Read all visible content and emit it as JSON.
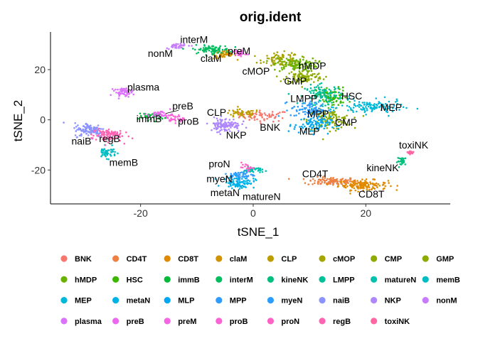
{
  "chart_data": {
    "type": "scatter",
    "title": "orig.ident",
    "xlabel": "tSNE_1",
    "ylabel": "tSNE_2",
    "xlim": [
      -36,
      35
    ],
    "ylim": [
      -33.5,
      35
    ],
    "xticks": [
      -20,
      0,
      20
    ],
    "yticks": [
      -20,
      0,
      20
    ],
    "grid": false,
    "legend_position": "bottom",
    "legend_columns": 8,
    "clusters": [
      {
        "name": "BNK",
        "color": "#F8766D",
        "center": [
          2.0,
          1.5
        ],
        "spread": [
          4.0,
          2.0
        ],
        "n": 60,
        "label": [
          3.0,
          -3.0
        ]
      },
      {
        "name": "CD4T",
        "color": "#EE8044",
        "center": [
          14.0,
          -24.5
        ],
        "spread": [
          4.0,
          1.5
        ],
        "n": 120,
        "label": [
          11.0,
          -21.5
        ]
      },
      {
        "name": "CD8T",
        "color": "#E18A00",
        "center": [
          19.5,
          -26.0
        ],
        "spread": [
          4.0,
          1.8
        ],
        "n": 130,
        "label": [
          21.0,
          -29.5
        ]
      },
      {
        "name": "claM",
        "color": "#D09400",
        "center": [
          -5.0,
          26.0
        ],
        "spread": [
          1.8,
          1.5
        ],
        "n": 50,
        "label": [
          -7.5,
          24.5
        ]
      },
      {
        "name": "CLP",
        "color": "#BD9C00",
        "center": [
          -2.0,
          2.5
        ],
        "spread": [
          3.0,
          1.5
        ],
        "n": 50,
        "label": [
          -6.5,
          3.0
        ]
      },
      {
        "name": "cMOP",
        "color": "#A5A400",
        "center": [
          5.0,
          24.0
        ],
        "spread": [
          3.0,
          2.5
        ],
        "n": 80,
        "label": [
          0.5,
          19.5
        ]
      },
      {
        "name": "CMP",
        "color": "#8DAA00",
        "center": [
          13.5,
          0.0
        ],
        "spread": [
          3.5,
          3.5
        ],
        "n": 120,
        "label": [
          16.5,
          -1.0
        ]
      },
      {
        "name": "GMP",
        "color": "#8DAA00",
        "center": [
          9.0,
          17.0
        ],
        "spread": [
          3.0,
          2.5
        ],
        "n": 100,
        "label": [
          7.5,
          15.5
        ]
      },
      {
        "name": "hMDP",
        "color": "#6BB100",
        "center": [
          7.5,
          22.0
        ],
        "spread": [
          3.5,
          2.5
        ],
        "n": 110,
        "label": [
          10.5,
          21.5
        ]
      },
      {
        "name": "HSC",
        "color": "#3BB700",
        "center": [
          14.0,
          9.0
        ],
        "spread": [
          2.5,
          3.5
        ],
        "n": 90,
        "label": [
          17.5,
          9.5
        ]
      },
      {
        "name": "immB",
        "color": "#00BA38",
        "center": [
          -18.0,
          1.5
        ],
        "spread": [
          2.0,
          1.5
        ],
        "n": 40,
        "label": [
          -18.5,
          0.5
        ]
      },
      {
        "name": "interM",
        "color": "#00BD5E",
        "center": [
          -7.5,
          28.0
        ],
        "spread": [
          3.0,
          1.5
        ],
        "n": 80,
        "label": [
          -10.5,
          32.0
        ]
      },
      {
        "name": "kineNK",
        "color": "#00BF7D",
        "center": [
          26.5,
          -16.5
        ],
        "spread": [
          0.8,
          1.5
        ],
        "n": 30,
        "label": [
          23.0,
          -19.0
        ]
      },
      {
        "name": "LMPP",
        "color": "#00C097",
        "center": [
          12.5,
          10.0
        ],
        "spread": [
          3.0,
          3.5
        ],
        "n": 110,
        "label": [
          9.0,
          8.5
        ]
      },
      {
        "name": "matureN",
        "color": "#00C0AF",
        "center": [
          0.0,
          -20.0
        ],
        "spread": [
          1.5,
          1.0
        ],
        "n": 40,
        "label": [
          1.5,
          -30.5
        ]
      },
      {
        "name": "memB",
        "color": "#00BDC4",
        "center": [
          -26.0,
          -13.0
        ],
        "spread": [
          1.5,
          2.0
        ],
        "n": 50,
        "label": [
          -23.0,
          -17.0
        ]
      },
      {
        "name": "MEP",
        "color": "#00B8D7",
        "center": [
          21.0,
          5.0
        ],
        "spread": [
          5.0,
          2.5
        ],
        "n": 120,
        "label": [
          24.5,
          5.0
        ]
      },
      {
        "name": "metaN",
        "color": "#00B2E7",
        "center": [
          -2.5,
          -25.0
        ],
        "spread": [
          2.5,
          2.0
        ],
        "n": 90,
        "label": [
          -5.0,
          -29.0
        ]
      },
      {
        "name": "MLP",
        "color": "#00A8F4",
        "center": [
          10.5,
          -2.0
        ],
        "spread": [
          3.0,
          3.0
        ],
        "n": 90,
        "label": [
          10.0,
          -4.5
        ]
      },
      {
        "name": "MPP",
        "color": "#2C9DFE",
        "center": [
          10.0,
          4.0
        ],
        "spread": [
          3.0,
          3.0
        ],
        "n": 90,
        "label": [
          11.5,
          2.5
        ]
      },
      {
        "name": "myeN",
        "color": "#2C9DFE",
        "center": [
          -2.0,
          -22.0
        ],
        "spread": [
          2.0,
          1.5
        ],
        "n": 50,
        "label": [
          -6.0,
          -23.5
        ]
      },
      {
        "name": "naiB",
        "color": "#8B93FF",
        "center": [
          -29.0,
          -4.0
        ],
        "spread": [
          2.5,
          2.5
        ],
        "n": 110,
        "label": [
          -30.5,
          -8.5
        ]
      },
      {
        "name": "NKP",
        "color": "#AE87FF",
        "center": [
          -5.0,
          -2.0
        ],
        "spread": [
          2.5,
          2.5
        ],
        "n": 110,
        "label": [
          -3.0,
          -6.0
        ]
      },
      {
        "name": "nonM",
        "color": "#C77CFF",
        "center": [
          -13.5,
          29.5
        ],
        "spread": [
          1.8,
          1.0
        ],
        "n": 40,
        "label": [
          -16.5,
          26.5
        ]
      },
      {
        "name": "plasma",
        "color": "#DB72FB",
        "center": [
          -23.0,
          11.0
        ],
        "spread": [
          1.5,
          1.5
        ],
        "n": 50,
        "label": [
          -19.5,
          13.0
        ]
      },
      {
        "name": "preB",
        "color": "#EA69EE",
        "center": [
          -16.5,
          2.0
        ],
        "spread": [
          2.0,
          1.5
        ],
        "n": 40,
        "label": [
          -12.5,
          5.5
        ]
      },
      {
        "name": "preM",
        "color": "#F564E3",
        "center": [
          -2.5,
          26.5
        ],
        "spread": [
          1.2,
          1.2
        ],
        "n": 30,
        "label": [
          -2.5,
          27.5
        ]
      },
      {
        "name": "proB",
        "color": "#FC61D5",
        "center": [
          -14.0,
          0.5
        ],
        "spread": [
          1.5,
          1.5
        ],
        "n": 30,
        "label": [
          -11.5,
          -0.5
        ]
      },
      {
        "name": "proN",
        "color": "#FF61C5",
        "center": [
          -1.0,
          -19.0
        ],
        "spread": [
          1.0,
          1.0
        ],
        "n": 20,
        "label": [
          -6.0,
          -17.5
        ]
      },
      {
        "name": "regB",
        "color": "#FF63B4",
        "center": [
          -26.0,
          -6.0
        ],
        "spread": [
          2.5,
          2.5
        ],
        "n": 90,
        "label": [
          -25.5,
          -7.5
        ]
      },
      {
        "name": "toxiNK",
        "color": "#FF67A4",
        "center": [
          28.0,
          -13.0
        ],
        "spread": [
          0.8,
          0.6
        ],
        "n": 20,
        "label": [
          28.5,
          -10.0
        ]
      }
    ]
  }
}
